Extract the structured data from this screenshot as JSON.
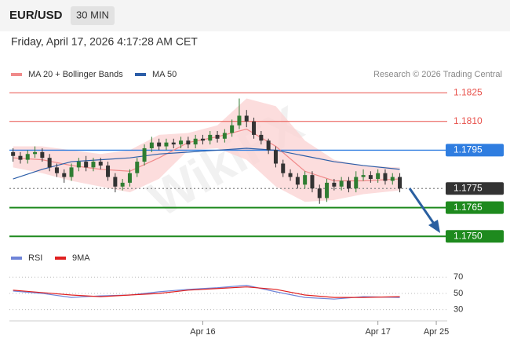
{
  "header": {
    "symbol": "EUR/USD",
    "interval": "30 MIN",
    "timestamp": "Friday, April 17, 2026 4:17:28 AM CET",
    "credit": "Research © 2026 Trading Central"
  },
  "watermark": "WikiFX",
  "chart_data": [
    {
      "type": "candlestick",
      "xlim": [
        -0.5,
        59.5
      ],
      "ylim": [
        1.1746,
        1.183
      ],
      "up_color": "#2f7d32",
      "down_color": "#333333",
      "x": [
        0,
        1,
        2,
        3,
        4,
        5,
        6,
        7,
        8,
        9,
        10,
        11,
        12,
        13,
        14,
        15,
        16,
        17,
        18,
        19,
        20,
        21,
        22,
        23,
        24,
        25,
        26,
        27,
        28,
        29,
        30,
        31,
        32,
        33,
        34,
        35,
        36,
        37,
        38,
        39,
        40,
        41,
        42,
        43,
        44,
        45,
        46,
        47,
        48,
        49,
        50,
        51,
        52,
        53
      ],
      "open": [
        1.1794,
        1.1792,
        1.179,
        1.1793,
        1.1794,
        1.1791,
        1.1786,
        1.1783,
        1.1781,
        1.1786,
        1.1789,
        1.1786,
        1.1789,
        1.1787,
        1.1781,
        1.1776,
        1.1778,
        1.1783,
        1.1789,
        1.1796,
        1.1799,
        1.1797,
        1.1799,
        1.1798,
        1.18,
        1.1798,
        1.1801,
        1.18,
        1.1803,
        1.1801,
        1.1804,
        1.1808,
        1.1813,
        1.181,
        1.1803,
        1.18,
        1.1795,
        1.1788,
        1.1783,
        1.1781,
        1.1777,
        1.1782,
        1.1775,
        1.177,
        1.1778,
        1.1776,
        1.1779,
        1.1775,
        1.1781,
        1.1782,
        1.178,
        1.1783,
        1.1779,
        1.1781
      ],
      "high": [
        1.1796,
        1.1794,
        1.1795,
        1.1797,
        1.1796,
        1.1793,
        1.1788,
        1.1785,
        1.1788,
        1.1791,
        1.1792,
        1.1791,
        1.1791,
        1.1789,
        1.1783,
        1.178,
        1.1785,
        1.1791,
        1.1798,
        1.1802,
        1.1801,
        1.1801,
        1.1801,
        1.1802,
        1.1802,
        1.1803,
        1.1803,
        1.1805,
        1.1805,
        1.1806,
        1.1811,
        1.1822,
        1.1816,
        1.1812,
        1.1805,
        1.1801,
        1.1797,
        1.179,
        1.1785,
        1.1783,
        1.1784,
        1.1784,
        1.1777,
        1.178,
        1.178,
        1.1781,
        1.1781,
        1.1784,
        1.1785,
        1.1784,
        1.1785,
        1.1785,
        1.1783,
        1.1783
      ],
      "low": [
        1.1789,
        1.1788,
        1.1788,
        1.1791,
        1.1789,
        1.1784,
        1.1781,
        1.1778,
        1.1779,
        1.1784,
        1.1784,
        1.1784,
        1.1785,
        1.1779,
        1.1773,
        1.1774,
        1.1776,
        1.1781,
        1.1787,
        1.1794,
        1.1795,
        1.1795,
        1.1796,
        1.1796,
        1.1796,
        1.1796,
        1.1798,
        1.1798,
        1.1799,
        1.1799,
        1.1802,
        1.1806,
        1.1807,
        1.1801,
        1.1798,
        1.1793,
        1.1786,
        1.1781,
        1.1779,
        1.1775,
        1.1775,
        1.1773,
        1.1767,
        1.1768,
        1.1774,
        1.1774,
        1.1773,
        1.1773,
        1.1779,
        1.1778,
        1.1778,
        1.1777,
        1.1777,
        1.1773
      ],
      "close": [
        1.1792,
        1.179,
        1.1793,
        1.1794,
        1.1791,
        1.1786,
        1.1783,
        1.1781,
        1.1786,
        1.1789,
        1.1786,
        1.1789,
        1.1787,
        1.1781,
        1.1776,
        1.1778,
        1.1783,
        1.1789,
        1.1796,
        1.1799,
        1.1797,
        1.1799,
        1.1798,
        1.18,
        1.1798,
        1.1801,
        1.18,
        1.1803,
        1.1801,
        1.1804,
        1.1808,
        1.1813,
        1.181,
        1.1803,
        1.18,
        1.1795,
        1.1788,
        1.1783,
        1.1781,
        1.1777,
        1.1782,
        1.1775,
        1.177,
        1.1778,
        1.1776,
        1.1779,
        1.1775,
        1.1781,
        1.1782,
        1.178,
        1.1783,
        1.1779,
        1.1781,
        1.1775
      ],
      "series": [
        {
          "name": "MA 20 + Bollinger Bands",
          "color": "#f08a8a",
          "band_color": "#fbd5d5",
          "x": [
            0,
            4,
            8,
            12,
            16,
            20,
            24,
            28,
            32,
            36,
            40,
            44,
            48,
            53
          ],
          "values": [
            1.1791,
            1.179,
            1.1787,
            1.1785,
            1.1784,
            1.1791,
            1.1799,
            1.1802,
            1.1806,
            1.1797,
            1.1784,
            1.1779,
            1.1779,
            1.178
          ],
          "upper": [
            1.1797,
            1.1797,
            1.1795,
            1.1793,
            1.1795,
            1.1803,
            1.1804,
            1.1808,
            1.1822,
            1.1818,
            1.18,
            1.179,
            1.1787,
            1.1786
          ],
          "lower": [
            1.1786,
            1.1783,
            1.1779,
            1.1776,
            1.1773,
            1.178,
            1.1795,
            1.1796,
            1.179,
            1.1776,
            1.1768,
            1.1769,
            1.1772,
            1.1774
          ]
        },
        {
          "name": "MA 50",
          "color": "#2c5ea8",
          "x": [
            0,
            4,
            8,
            12,
            16,
            20,
            24,
            28,
            32,
            36,
            40,
            44,
            48,
            53
          ],
          "values": [
            1.178,
            1.1785,
            1.1789,
            1.179,
            1.1791,
            1.1793,
            1.1794,
            1.1795,
            1.1796,
            1.1795,
            1.1792,
            1.1789,
            1.1787,
            1.1785
          ]
        }
      ],
      "levels": [
        {
          "value": 1.1825,
          "color": "#e8504a",
          "boxed": false,
          "dashed": false
        },
        {
          "value": 1.181,
          "label": "1.1810",
          "color": "#e8504a",
          "boxed": false,
          "dashed": false
        },
        {
          "value": 1.1795,
          "color": "#2f7de0",
          "boxed": true,
          "dashed": false
        },
        {
          "value": 1.1775,
          "color": "#333333",
          "boxed": true,
          "dashed": true
        },
        {
          "value": 1.1765,
          "color": "#1e8a1e",
          "boxed": true,
          "dashed": false
        },
        {
          "value": 1.175,
          "label": "1.1750",
          "color": "#1e8a1e",
          "boxed": true,
          "dashed": false
        }
      ]
    },
    {
      "type": "line",
      "xlim": [
        -0.5,
        59.5
      ],
      "ylim": [
        20,
        78
      ],
      "yticks": [
        30,
        50,
        70
      ],
      "xticks": [
        {
          "value": 26,
          "label": "Apr 16"
        },
        {
          "value": 50,
          "label": "Apr 17"
        },
        {
          "value": 58,
          "label": "Apr 25"
        }
      ],
      "series": [
        {
          "name": "RSI",
          "color": "#6f84d8",
          "x": [
            0,
            4,
            8,
            12,
            16,
            20,
            24,
            28,
            32,
            36,
            40,
            44,
            48,
            53
          ],
          "values": [
            53,
            50,
            45,
            47,
            48,
            52,
            55,
            57,
            60,
            52,
            45,
            43,
            46,
            45
          ]
        },
        {
          "name": "9MA",
          "color": "#e02020",
          "x": [
            0,
            4,
            8,
            12,
            16,
            20,
            24,
            28,
            32,
            36,
            40,
            44,
            48,
            53
          ],
          "values": [
            54,
            51,
            48,
            46,
            48,
            50,
            54,
            56,
            58,
            55,
            48,
            45,
            45,
            46
          ]
        }
      ]
    }
  ]
}
